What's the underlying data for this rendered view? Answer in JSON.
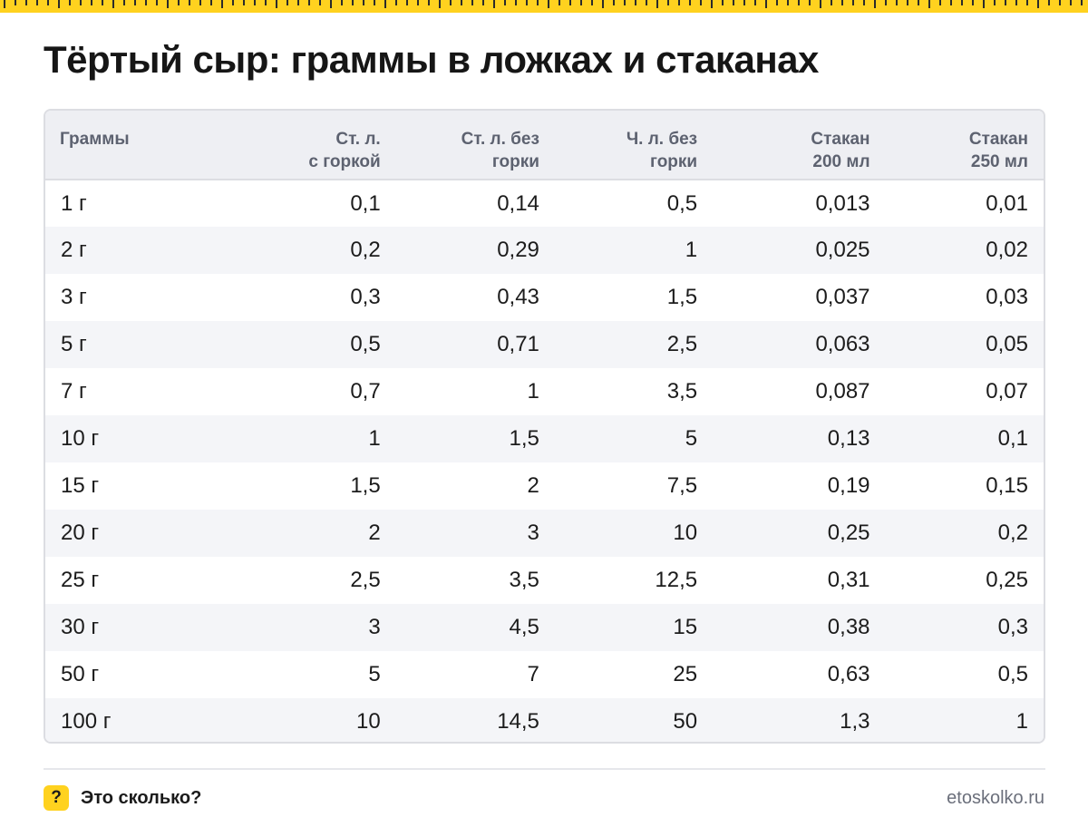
{
  "title": "Тёртый сыр: граммы в ложках и стаканах",
  "table": {
    "headers": [
      "Граммы",
      "Ст. л.\nс горкой",
      "Ст. л. без\nгорки",
      "Ч. л. без\nгорки",
      "Стакан\n200 мл",
      "Стакан\n250 мл"
    ],
    "rows": [
      [
        "1 г",
        "0,1",
        "0,14",
        "0,5",
        "0,013",
        "0,01"
      ],
      [
        "2 г",
        "0,2",
        "0,29",
        "1",
        "0,025",
        "0,02"
      ],
      [
        "3 г",
        "0,3",
        "0,43",
        "1,5",
        "0,037",
        "0,03"
      ],
      [
        "5 г",
        "0,5",
        "0,71",
        "2,5",
        "0,063",
        "0,05"
      ],
      [
        "7 г",
        "0,7",
        "1",
        "3,5",
        "0,087",
        "0,07"
      ],
      [
        "10 г",
        "1",
        "1,5",
        "5",
        "0,13",
        "0,1"
      ],
      [
        "15 г",
        "1,5",
        "2",
        "7,5",
        "0,19",
        "0,15"
      ],
      [
        "20 г",
        "2",
        "3",
        "10",
        "0,25",
        "0,2"
      ],
      [
        "25 г",
        "2,5",
        "3,5",
        "12,5",
        "0,31",
        "0,25"
      ],
      [
        "30 г",
        "3",
        "4,5",
        "15",
        "0,38",
        "0,3"
      ],
      [
        "50 г",
        "5",
        "7",
        "25",
        "0,63",
        "0,5"
      ],
      [
        "100 г",
        "10",
        "14,5",
        "50",
        "1,3",
        "1"
      ]
    ]
  },
  "footer": {
    "badge": "?",
    "brand": "Это сколько?",
    "site": "etoskolko.ru"
  },
  "colors": {
    "accent": "#ffd21f",
    "header_bg": "#eeeff3",
    "stripe_bg": "#f4f5f8"
  },
  "icons": {
    "top_ruler": "ruler-strip",
    "logo": "question-badge-icon"
  }
}
